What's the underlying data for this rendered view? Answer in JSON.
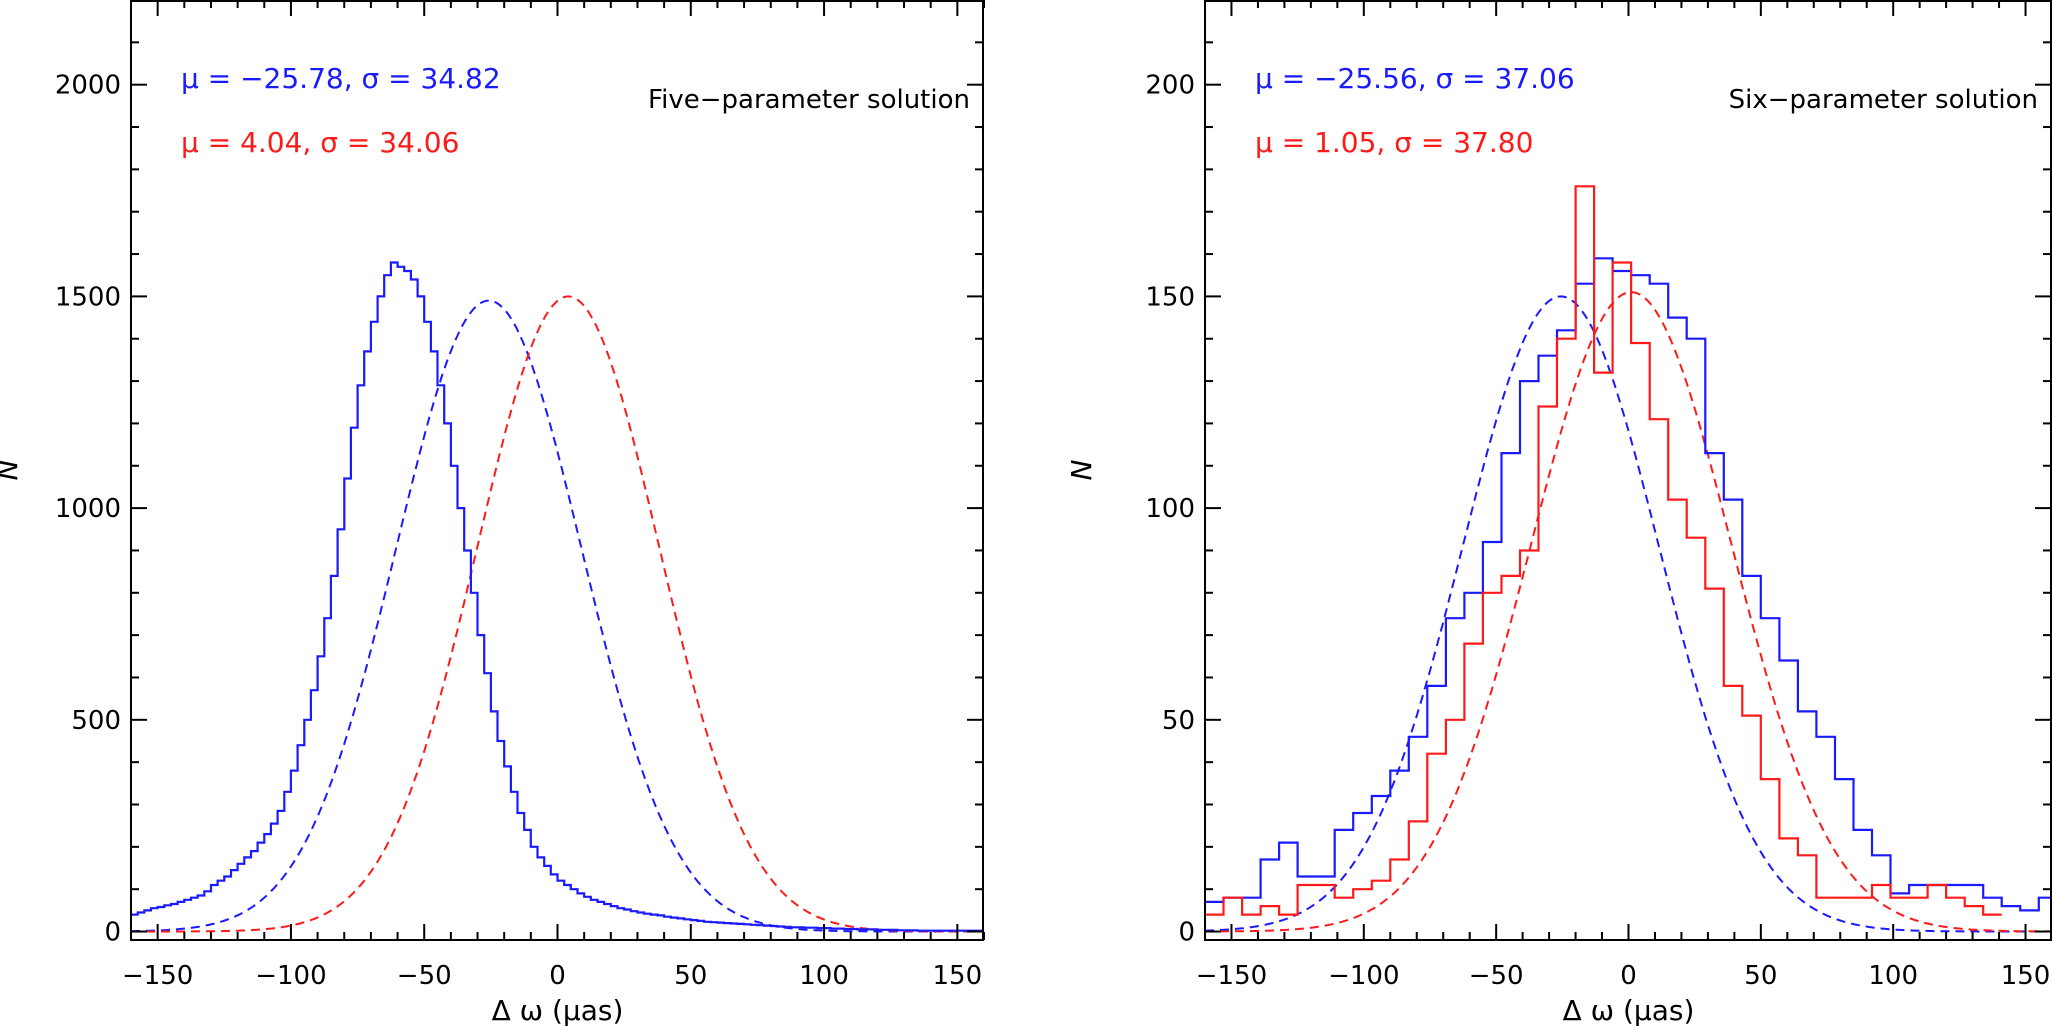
{
  "colors": {
    "blue": "#1a1aff",
    "red": "#ff1a1a",
    "axis": "#000000"
  },
  "chart_data": [
    {
      "type": "line",
      "panel": "left",
      "annotation": "Five−parameter solution",
      "stats": [
        {
          "color": "blue",
          "text": "μ = −25.78, σ =  34.82"
        },
        {
          "color": "red",
          "text": "μ =   4.04, σ =  34.06"
        }
      ],
      "xlabel": "Δ ω (μas)",
      "ylabel": "N",
      "xlim": [
        -160,
        160
      ],
      "ylim": [
        -20,
        2200
      ],
      "xticks": [
        -150,
        -100,
        -50,
        0,
        50,
        100,
        150
      ],
      "xtick_labels": [
        "−150",
        "−100",
        "−50",
        "0",
        "50",
        "100",
        "150"
      ],
      "yticks": [
        0,
        500,
        1000,
        1500,
        2000
      ],
      "ytick_labels": [
        "0",
        "500",
        "1000",
        "1500",
        "2000"
      ],
      "grid": false,
      "histograms": [
        {
          "color": "blue",
          "bin_width": 2.5,
          "start": -160,
          "values": [
            40,
            45,
            50,
            55,
            58,
            62,
            65,
            70,
            75,
            80,
            85,
            95,
            110,
            120,
            130,
            145,
            160,
            175,
            190,
            210,
            230,
            255,
            285,
            330,
            380,
            440,
            500,
            570,
            650,
            740,
            840,
            950,
            1070,
            1190,
            1290,
            1370,
            1440,
            1500,
            1550,
            1580,
            1570,
            1560,
            1540,
            1500,
            1440,
            1370,
            1290,
            1200,
            1100,
            1000,
            900,
            800,
            700,
            610,
            520,
            450,
            390,
            330,
            280,
            240,
            200,
            175,
            155,
            135,
            120,
            110,
            100,
            90,
            82,
            75,
            70,
            65,
            60,
            55,
            52,
            48,
            45,
            42,
            40,
            38,
            35,
            33,
            31,
            29,
            27,
            25,
            23,
            22,
            21,
            20,
            19,
            18,
            17,
            16,
            15,
            14,
            13,
            12,
            11,
            10,
            10,
            9,
            9,
            8,
            8,
            7,
            7,
            6,
            6,
            5,
            5,
            5,
            4,
            4,
            4,
            3,
            3,
            3,
            2,
            2,
            2,
            2,
            2,
            2,
            2,
            2,
            2,
            2
          ]
        }
      ],
      "series": [
        {
          "name": "",
          "color": "blue",
          "kind": "gaussian",
          "mu": -25.78,
          "sigma": 34.82,
          "amplitude": 1490
        },
        {
          "name": "",
          "color": "red",
          "kind": "gaussian",
          "mu": 4.04,
          "sigma": 34.06,
          "amplitude": 1500
        }
      ]
    },
    {
      "type": "line",
      "panel": "right",
      "annotation": "Six−parameter solution",
      "stats": [
        {
          "color": "blue",
          "text": "μ = −25.56, σ =  37.06"
        },
        {
          "color": "red",
          "text": "μ =   1.05, σ =  37.80"
        }
      ],
      "xlabel": "Δ ω (μas)",
      "ylabel": "N",
      "xlim": [
        -160,
        160
      ],
      "ylim": [
        -2,
        220
      ],
      "xticks": [
        -150,
        -100,
        -50,
        0,
        50,
        100,
        150
      ],
      "xtick_labels": [
        "−150",
        "−100",
        "−50",
        "0",
        "50",
        "100",
        "150"
      ],
      "yticks": [
        0,
        50,
        100,
        150,
        200
      ],
      "ytick_labels": [
        "0",
        "50",
        "100",
        "150",
        "200"
      ],
      "grid": false,
      "histograms": [
        {
          "color": "blue",
          "bin_width": 7,
          "start": -160,
          "values": [
            7,
            8,
            8,
            17,
            21,
            13,
            13,
            24,
            28,
            32,
            38,
            46,
            58,
            74,
            80,
            92,
            113,
            130,
            136,
            142,
            153,
            159,
            156,
            155,
            153,
            145,
            140,
            113,
            102,
            84,
            74,
            64,
            52,
            46,
            36,
            24,
            18,
            9,
            11,
            11,
            11,
            11,
            8,
            6,
            5,
            8,
            6,
            4
          ]
        },
        {
          "color": "red",
          "bin_width": 7,
          "start": -160,
          "values": [
            4,
            8,
            4,
            6,
            4,
            11,
            11,
            8,
            10,
            12,
            17,
            26,
            42,
            50,
            68,
            80,
            84,
            90,
            124,
            140,
            176,
            132,
            158,
            139,
            121,
            102,
            93,
            81,
            58,
            51,
            36,
            22,
            18,
            8,
            8,
            8,
            11,
            8,
            8,
            11,
            8,
            6,
            4
          ]
        }
      ],
      "series": [
        {
          "name": "",
          "color": "blue",
          "kind": "gaussian",
          "mu": -25.56,
          "sigma": 37.06,
          "amplitude": 150
        },
        {
          "name": "",
          "color": "red",
          "kind": "gaussian",
          "mu": 1.05,
          "sigma": 37.8,
          "amplitude": 151
        }
      ]
    }
  ]
}
